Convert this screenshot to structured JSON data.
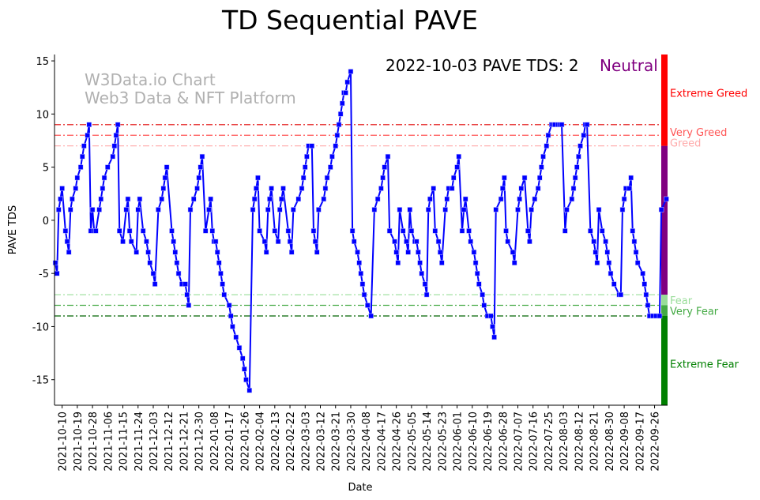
{
  "chart_data": {
    "type": "line",
    "title": "TD Sequential PAVE",
    "xlabel": "Date",
    "ylabel": "PAVE TDS",
    "ylim": [
      -17.4,
      15.6
    ],
    "yticks": [
      -15,
      -10,
      -5,
      0,
      5,
      10,
      15
    ],
    "x_start_date": "2021-10-06",
    "x_unit": "days since x_start_date",
    "xlim_days": [
      -0.5,
      362.7
    ],
    "xtick_labels": [
      "2021-10-10",
      "2021-10-19",
      "2021-10-28",
      "2021-11-06",
      "2021-11-15",
      "2021-11-24",
      "2021-12-03",
      "2021-12-12",
      "2021-12-21",
      "2021-12-30",
      "2022-01-08",
      "2022-01-17",
      "2022-01-26",
      "2022-02-04",
      "2022-02-13",
      "2022-02-22",
      "2022-03-03",
      "2022-03-12",
      "2022-03-21",
      "2022-03-30",
      "2022-04-08",
      "2022-04-17",
      "2022-04-26",
      "2022-05-05",
      "2022-05-14",
      "2022-05-23",
      "2022-06-01",
      "2022-06-10",
      "2022-06-19",
      "2022-06-28",
      "2022-07-07",
      "2022-07-16",
      "2022-07-25",
      "2022-08-03",
      "2022-08-12",
      "2022-08-21",
      "2022-08-30",
      "2022-09-08",
      "2022-09-17",
      "2022-09-26"
    ],
    "xtick_days_start": 4,
    "xtick_step_days": 9,
    "series": [
      {
        "name": "PAVE TDS",
        "color": "#0000ff",
        "points": [
          [
            0,
            -4
          ],
          [
            1,
            -5
          ],
          [
            2,
            1
          ],
          [
            3,
            2
          ],
          [
            4,
            3
          ],
          [
            6,
            -1
          ],
          [
            7,
            -2
          ],
          [
            8,
            -3
          ],
          [
            9,
            1
          ],
          [
            10,
            2
          ],
          [
            12,
            3
          ],
          [
            13,
            4
          ],
          [
            15,
            5
          ],
          [
            16,
            6
          ],
          [
            17,
            7
          ],
          [
            19,
            8
          ],
          [
            20,
            9
          ],
          [
            21,
            -1
          ],
          [
            22,
            1
          ],
          [
            23,
            -1
          ],
          [
            24,
            -1
          ],
          [
            26,
            1
          ],
          [
            27,
            2
          ],
          [
            28,
            3
          ],
          [
            29,
            4
          ],
          [
            31,
            5
          ],
          [
            34,
            6
          ],
          [
            35,
            7
          ],
          [
            36,
            8
          ],
          [
            37,
            9
          ],
          [
            38,
            -1
          ],
          [
            40,
            -2
          ],
          [
            42,
            1
          ],
          [
            43,
            2
          ],
          [
            44,
            -1
          ],
          [
            45,
            -2
          ],
          [
            48,
            -3
          ],
          [
            49,
            1
          ],
          [
            50,
            2
          ],
          [
            52,
            -1
          ],
          [
            54,
            -2
          ],
          [
            55,
            -3
          ],
          [
            56,
            -4
          ],
          [
            58,
            -5
          ],
          [
            59,
            -6
          ],
          [
            61,
            1
          ],
          [
            63,
            2
          ],
          [
            64,
            3
          ],
          [
            65,
            4
          ],
          [
            66,
            5
          ],
          [
            69,
            -1
          ],
          [
            70,
            -2
          ],
          [
            71,
            -3
          ],
          [
            72,
            -4
          ],
          [
            73,
            -5
          ],
          [
            75,
            -6
          ],
          [
            77,
            -6
          ],
          [
            78,
            -7
          ],
          [
            79,
            -8
          ],
          [
            80,
            1
          ],
          [
            82,
            2
          ],
          [
            84,
            3
          ],
          [
            85,
            4
          ],
          [
            86,
            5
          ],
          [
            87,
            6
          ],
          [
            89,
            -1
          ],
          [
            91,
            1
          ],
          [
            92,
            2
          ],
          [
            93,
            -1
          ],
          [
            94,
            -2
          ],
          [
            95,
            -2
          ],
          [
            96,
            -3
          ],
          [
            97,
            -4
          ],
          [
            98,
            -5
          ],
          [
            99,
            -6
          ],
          [
            100,
            -7
          ],
          [
            103,
            -8
          ],
          [
            104,
            -9
          ],
          [
            105,
            -10
          ],
          [
            107,
            -11
          ],
          [
            109,
            -12
          ],
          [
            111,
            -13
          ],
          [
            112,
            -14
          ],
          [
            113,
            -15
          ],
          [
            115,
            -16
          ],
          [
            117,
            1
          ],
          [
            118,
            2
          ],
          [
            119,
            3
          ],
          [
            120,
            4
          ],
          [
            121,
            -1
          ],
          [
            124,
            -2
          ],
          [
            125,
            -3
          ],
          [
            126,
            1
          ],
          [
            127,
            2
          ],
          [
            128,
            3
          ],
          [
            130,
            -1
          ],
          [
            132,
            -2
          ],
          [
            133,
            1
          ],
          [
            134,
            2
          ],
          [
            135,
            3
          ],
          [
            138,
            -1
          ],
          [
            139,
            -2
          ],
          [
            140,
            -3
          ],
          [
            141,
            1
          ],
          [
            144,
            2
          ],
          [
            146,
            3
          ],
          [
            147,
            4
          ],
          [
            148,
            5
          ],
          [
            149,
            6
          ],
          [
            150,
            7
          ],
          [
            152,
            7
          ],
          [
            153,
            -1
          ],
          [
            154,
            -2
          ],
          [
            155,
            -3
          ],
          [
            156,
            1
          ],
          [
            159,
            2
          ],
          [
            160,
            3
          ],
          [
            161,
            4
          ],
          [
            163,
            5
          ],
          [
            164,
            6
          ],
          [
            166,
            7
          ],
          [
            167,
            8
          ],
          [
            168,
            9
          ],
          [
            169,
            10
          ],
          [
            170,
            11
          ],
          [
            171,
            12
          ],
          [
            172,
            12
          ],
          [
            173,
            13
          ],
          [
            175,
            14
          ],
          [
            176,
            -1
          ],
          [
            177,
            -2
          ],
          [
            179,
            -3
          ],
          [
            180,
            -4
          ],
          [
            181,
            -5
          ],
          [
            182,
            -6
          ],
          [
            183,
            -7
          ],
          [
            185,
            -8
          ],
          [
            187,
            -9
          ],
          [
            189,
            1
          ],
          [
            191,
            2
          ],
          [
            193,
            3
          ],
          [
            194,
            4
          ],
          [
            195,
            5
          ],
          [
            197,
            6
          ],
          [
            198,
            -1
          ],
          [
            201,
            -2
          ],
          [
            202,
            -3
          ],
          [
            203,
            -4
          ],
          [
            204,
            1
          ],
          [
            206,
            -1
          ],
          [
            208,
            -2
          ],
          [
            209,
            -3
          ],
          [
            210,
            1
          ],
          [
            211,
            -1
          ],
          [
            213,
            -2
          ],
          [
            214,
            -2
          ],
          [
            215,
            -3
          ],
          [
            216,
            -4
          ],
          [
            217,
            -5
          ],
          [
            219,
            -6
          ],
          [
            220,
            -7
          ],
          [
            221,
            1
          ],
          [
            222,
            2
          ],
          [
            224,
            3
          ],
          [
            225,
            -1
          ],
          [
            227,
            -2
          ],
          [
            228,
            -3
          ],
          [
            229,
            -4
          ],
          [
            231,
            1
          ],
          [
            232,
            2
          ],
          [
            233,
            3
          ],
          [
            235,
            3
          ],
          [
            236,
            4
          ],
          [
            238,
            5
          ],
          [
            239,
            6
          ],
          [
            241,
            -1
          ],
          [
            242,
            1
          ],
          [
            243,
            2
          ],
          [
            245,
            -1
          ],
          [
            246,
            -2
          ],
          [
            248,
            -3
          ],
          [
            249,
            -4
          ],
          [
            250,
            -5
          ],
          [
            251,
            -6
          ],
          [
            253,
            -7
          ],
          [
            254,
            -8
          ],
          [
            256,
            -9
          ],
          [
            258,
            -9
          ],
          [
            259,
            -10
          ],
          [
            260,
            -11
          ],
          [
            261,
            1
          ],
          [
            264,
            2
          ],
          [
            265,
            3
          ],
          [
            266,
            4
          ],
          [
            267,
            -1
          ],
          [
            268,
            -2
          ],
          [
            271,
            -3
          ],
          [
            272,
            -4
          ],
          [
            274,
            1
          ],
          [
            275,
            2
          ],
          [
            276,
            3
          ],
          [
            278,
            4
          ],
          [
            280,
            -1
          ],
          [
            281,
            -2
          ],
          [
            282,
            1
          ],
          [
            284,
            2
          ],
          [
            286,
            3
          ],
          [
            287,
            4
          ],
          [
            288,
            5
          ],
          [
            289,
            6
          ],
          [
            291,
            7
          ],
          [
            292,
            8
          ],
          [
            294,
            9
          ],
          [
            295,
            9
          ],
          [
            296,
            9
          ],
          [
            298,
            9
          ],
          [
            299,
            9
          ],
          [
            300,
            9
          ],
          [
            302,
            -1
          ],
          [
            303,
            1
          ],
          [
            306,
            2
          ],
          [
            307,
            3
          ],
          [
            308,
            4
          ],
          [
            309,
            5
          ],
          [
            310,
            6
          ],
          [
            311,
            7
          ],
          [
            313,
            8
          ],
          [
            314,
            9
          ],
          [
            315,
            9
          ],
          [
            317,
            -1
          ],
          [
            319,
            -2
          ],
          [
            320,
            -3
          ],
          [
            321,
            -4
          ],
          [
            322,
            1
          ],
          [
            324,
            -1
          ],
          [
            326,
            -2
          ],
          [
            327,
            -3
          ],
          [
            328,
            -4
          ],
          [
            329,
            -5
          ],
          [
            331,
            -6
          ],
          [
            334,
            -7
          ],
          [
            335,
            -7
          ],
          [
            336,
            1
          ],
          [
            337,
            2
          ],
          [
            338,
            3
          ],
          [
            340,
            3
          ],
          [
            341,
            4
          ],
          [
            342,
            -1
          ],
          [
            343,
            -2
          ],
          [
            344,
            -3
          ],
          [
            345,
            -4
          ],
          [
            348,
            -5
          ],
          [
            349,
            -6
          ],
          [
            350,
            -7
          ],
          [
            351,
            -8
          ],
          [
            352,
            -9
          ],
          [
            354,
            -9
          ],
          [
            356,
            -9
          ],
          [
            358,
            -9
          ],
          [
            359,
            1
          ],
          [
            362,
            2
          ]
        ]
      }
    ],
    "threshold_lines": [
      {
        "value": 9,
        "color": "#e00000"
      },
      {
        "value": 8,
        "color": "#ff5555"
      },
      {
        "value": 7,
        "color": "#ffaaaa"
      },
      {
        "value": -7,
        "color": "#99dd99"
      },
      {
        "value": -8,
        "color": "#44aa44"
      },
      {
        "value": -9,
        "color": "#006400"
      }
    ],
    "zones": [
      {
        "label": "Extreme Greed",
        "from": 7,
        "to": 15.6,
        "color": "#ff0000",
        "label_value": 12,
        "label_color": "#ff0000"
      },
      {
        "label": "Very Greed",
        "label_value": 8.3,
        "label_color": "#ff5555"
      },
      {
        "label": "Greed",
        "label_value": 7.3,
        "label_color": "#ffaaaa"
      },
      {
        "label": "Neutral",
        "from": -7,
        "to": 7,
        "color": "#800080"
      },
      {
        "label": "Fear",
        "from": -8,
        "to": -7,
        "color": "#99dd99",
        "label_value": -7.5,
        "label_color": "#99dd99"
      },
      {
        "label": "Very Fear",
        "from": -9,
        "to": -8,
        "color": "#44aa44",
        "label_value": -8.5,
        "label_color": "#44aa44"
      },
      {
        "label": "Extreme Fear",
        "from": -17.4,
        "to": -9,
        "color": "#008000",
        "label_value": -13.5,
        "label_color": "#008000"
      }
    ],
    "annotation": {
      "text": "2022-10-03 PAVE TDS: 2",
      "status": "Neutral",
      "status_color": "#800080"
    },
    "watermark": {
      "line1": "W3Data.io Chart",
      "line2": "Web3 Data & NFT Platform"
    }
  }
}
